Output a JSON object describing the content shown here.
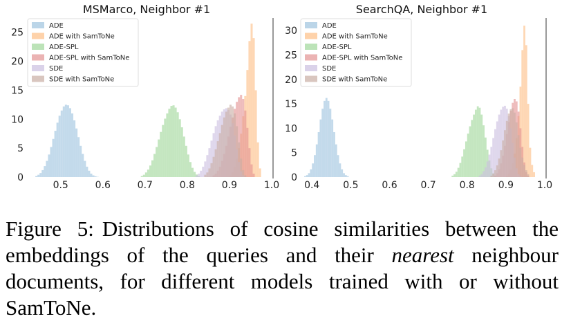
{
  "figure": {
    "colors": {
      "ADE": "#9ec3de",
      "ADE with SamToNe": "#fdbf86",
      "ADE-SPL": "#9fd79a",
      "ADE-SPL with SamToNe": "#e39393",
      "SDE": "#cbbfe0",
      "SDE with SamToNe": "#c9aea4"
    },
    "legend": [
      "ADE",
      "ADE with SamToNe",
      "ADE-SPL",
      "ADE-SPL with SamToNe",
      "SDE",
      "SDE with SamToNe"
    ]
  },
  "chart_data": [
    {
      "type": "histogram",
      "title": "MSMarco, Neighbor #1",
      "xlabel": "",
      "ylabel": "",
      "xlim": [
        0.43,
        1.0
      ],
      "ylim": [
        0,
        27
      ],
      "xticks": [
        "0.5",
        "0.6",
        "0.7",
        "0.8",
        "0.9",
        "1.0"
      ],
      "yticks": [
        "0",
        "5",
        "10",
        "15",
        "20",
        "25"
      ],
      "legend_position": "top-left",
      "series": [
        {
          "name": "ADE",
          "bin_start": 0.44,
          "bin_width": 0.005,
          "values": [
            0.2,
            0.4,
            0.7,
            1.2,
            1.9,
            2.8,
            3.9,
            5.2,
            6.6,
            8.0,
            9.4,
            10.6,
            11.5,
            12.2,
            12.5,
            12.4,
            11.9,
            11.0,
            9.8,
            8.4,
            6.9,
            5.4,
            4.0,
            2.8,
            1.8,
            1.1,
            0.6,
            0.3,
            0.15,
            0.05
          ]
        },
        {
          "name": "ADE with SamToNe",
          "bin_start": 0.9,
          "bin_width": 0.005,
          "values": [
            0.3,
            0.8,
            1.8,
            3.2,
            5.0,
            7.5,
            10.5,
            14.0,
            18.5,
            23.5,
            26.5,
            24.0,
            15.0,
            6.0,
            1.5
          ]
        },
        {
          "name": "ADE-SPL",
          "bin_start": 0.69,
          "bin_width": 0.005,
          "values": [
            0.2,
            0.4,
            0.8,
            1.3,
            2.0,
            2.9,
            4.0,
            5.2,
            6.5,
            7.8,
            9.0,
            10.1,
            11.0,
            11.8,
            12.3,
            12.4,
            12.0,
            11.2,
            10.0,
            8.6,
            7.0,
            5.4,
            3.9,
            2.6,
            1.6,
            0.9,
            0.45,
            0.2
          ]
        },
        {
          "name": "ADE-SPL with SamToNe",
          "bin_start": 0.86,
          "bin_width": 0.005,
          "values": [
            0.3,
            0.6,
            1.1,
            1.8,
            2.8,
            4.0,
            5.4,
            7.0,
            8.7,
            10.3,
            11.8,
            13.0,
            13.8,
            14.2,
            13.5,
            11.5,
            8.5,
            5.0,
            2.2,
            0.6
          ]
        },
        {
          "name": "SDE",
          "bin_start": 0.82,
          "bin_width": 0.005,
          "values": [
            0.3,
            0.6,
            1.1,
            1.8,
            2.7,
            3.8,
            5.0,
            6.3,
            7.6,
            8.8,
            9.8,
            10.6,
            11.3,
            11.7,
            11.9,
            11.6,
            10.8,
            9.3,
            7.2,
            4.8,
            2.6,
            1.0,
            0.3
          ]
        },
        {
          "name": "SDE with SamToNe",
          "bin_start": 0.84,
          "bin_width": 0.005,
          "values": [
            0.4,
            0.8,
            1.5,
            2.4,
            3.5,
            4.8,
            6.2,
            7.6,
            9.0,
            10.3,
            11.3,
            12.0,
            12.5,
            12.2,
            11.0,
            8.8,
            6.0,
            3.2,
            1.2,
            0.3
          ]
        }
      ]
    },
    {
      "type": "histogram",
      "title": "SearchQA, Neighbor #1",
      "xlabel": "",
      "ylabel": "",
      "xlim": [
        0.38,
        1.0
      ],
      "ylim": [
        0,
        32
      ],
      "xticks": [
        "0.4",
        "0.5",
        "0.6",
        "0.7",
        "0.8",
        "0.9",
        "1.0"
      ],
      "yticks": [
        "0",
        "5",
        "10",
        "15",
        "20",
        "25",
        "30"
      ],
      "legend_position": "top-left",
      "series": [
        {
          "name": "ADE",
          "bin_start": 0.38,
          "bin_width": 0.005,
          "values": [
            0.2,
            0.4,
            0.8,
            1.6,
            2.8,
            4.5,
            6.7,
            9.2,
            11.8,
            14.0,
            15.6,
            16.2,
            15.6,
            14.0,
            11.8,
            9.2,
            6.7,
            4.5,
            2.8,
            1.6,
            0.8,
            0.4,
            0.2
          ]
        },
        {
          "name": "ADE with SamToNe",
          "bin_start": 0.9,
          "bin_width": 0.005,
          "values": [
            0.3,
            0.7,
            1.5,
            2.8,
            4.8,
            8.0,
            12.5,
            18.5,
            26.0,
            31.0,
            27.0,
            15.0,
            6.0,
            2.5,
            1.0
          ]
        },
        {
          "name": "ADE-SPL",
          "bin_start": 0.76,
          "bin_width": 0.005,
          "values": [
            0.3,
            0.6,
            1.1,
            1.9,
            2.9,
            4.2,
            5.7,
            7.3,
            8.9,
            10.4,
            11.7,
            12.8,
            13.8,
            14.5,
            14.2,
            12.8,
            10.6,
            8.1,
            5.6,
            3.4,
            1.8,
            0.8,
            0.3
          ]
        },
        {
          "name": "ADE-SPL with SamToNe",
          "bin_start": 0.87,
          "bin_width": 0.005,
          "values": [
            0.3,
            0.8,
            1.6,
            2.8,
            4.4,
            6.4,
            8.8,
            11.3,
            13.6,
            15.2,
            16.0,
            15.5,
            13.4,
            10.0,
            6.2,
            3.0,
            1.0,
            0.3
          ]
        },
        {
          "name": "SDE",
          "bin_start": 0.83,
          "bin_width": 0.005,
          "values": [
            0.3,
            0.6,
            1.2,
            2.0,
            3.2,
            4.6,
            6.2,
            8.0,
            9.8,
            11.4,
            12.8,
            13.8,
            14.4,
            14.6,
            14.0,
            12.5,
            10.0,
            7.0,
            4.0,
            1.8,
            0.6,
            0.2
          ]
        },
        {
          "name": "SDE with SamToNe",
          "bin_start": 0.86,
          "bin_width": 0.005,
          "values": [
            0.3,
            0.7,
            1.4,
            2.4,
            3.8,
            5.5,
            7.5,
            9.6,
            11.5,
            13.0,
            13.9,
            14.1,
            13.2,
            11.2,
            8.6,
            6.0,
            4.0,
            2.5,
            1.4,
            0.6
          ]
        }
      ]
    }
  ],
  "caption": {
    "label": "Figure 5:",
    "text_before_em": "Distributions of cosine similarities between the embeddings of the queries and their ",
    "emphasis": "nearest",
    "text_after_em": " neighbour documents, for different models trained with or without SamToNe."
  }
}
